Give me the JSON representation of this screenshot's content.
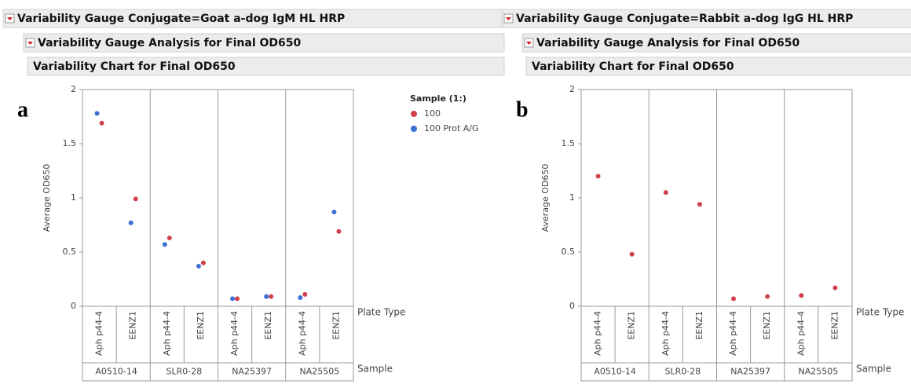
{
  "chart_data": [
    {
      "type": "scatter",
      "header": "Variability Gauge Conjugate=Goat a-dog IgM HL HRP",
      "subheader": "Variability Gauge Analysis for Final OD650",
      "title": "Variability Chart for Final OD650",
      "panel_label": "a",
      "y_label": "Average OD650",
      "x_label": "Plate Type",
      "group_label": "Sample",
      "categories": [
        "Aph p44-4",
        "EENZ1",
        "Aph p44-4",
        "EENZ1",
        "Aph p44-4",
        "EENZ1",
        "Aph p44-4",
        "EENZ1"
      ],
      "groups": [
        "A0510-14",
        "SLR0-28",
        "NA25397",
        "NA25505"
      ],
      "ylim": [
        0,
        2
      ],
      "yticks": [
        0,
        0.5,
        1,
        1.5,
        2
      ],
      "legend_title": "Sample (1:)",
      "series": [
        {
          "name": "100",
          "color": "#d0414d",
          "values": [
            1.69,
            0.99,
            0.63,
            0.4,
            0.07,
            0.09,
            0.11,
            0.69
          ]
        },
        {
          "name": "100 Prot A/G",
          "color": "#3c6fd4",
          "values": [
            1.78,
            0.77,
            0.57,
            0.37,
            0.07,
            0.09,
            0.08,
            0.87
          ]
        }
      ]
    },
    {
      "type": "scatter",
      "header": "Variability Gauge Conjugate=Rabbit a-dog IgG HL HRP",
      "subheader": "Variability Gauge Analysis for Final OD650",
      "title": "Variability Chart for Final OD650",
      "panel_label": "b",
      "y_label": "Average OD650",
      "x_label": "Plate Type",
      "group_label": "Sample",
      "categories": [
        "Aph p44-4",
        "EENZ1",
        "Aph p44-4",
        "EENZ1",
        "Aph p44-4",
        "EENZ1",
        "Aph p44-4",
        "EENZ1"
      ],
      "groups": [
        "A0510-14",
        "SLR0-28",
        "NA25397",
        "NA25505"
      ],
      "ylim": [
        0,
        2
      ],
      "yticks": [
        0,
        0.5,
        1,
        1.5,
        2
      ],
      "series": [
        {
          "color": "#d0414d",
          "values": [
            1.2,
            0.48,
            1.05,
            0.94,
            0.07,
            0.09,
            0.1,
            0.17
          ]
        }
      ]
    }
  ]
}
